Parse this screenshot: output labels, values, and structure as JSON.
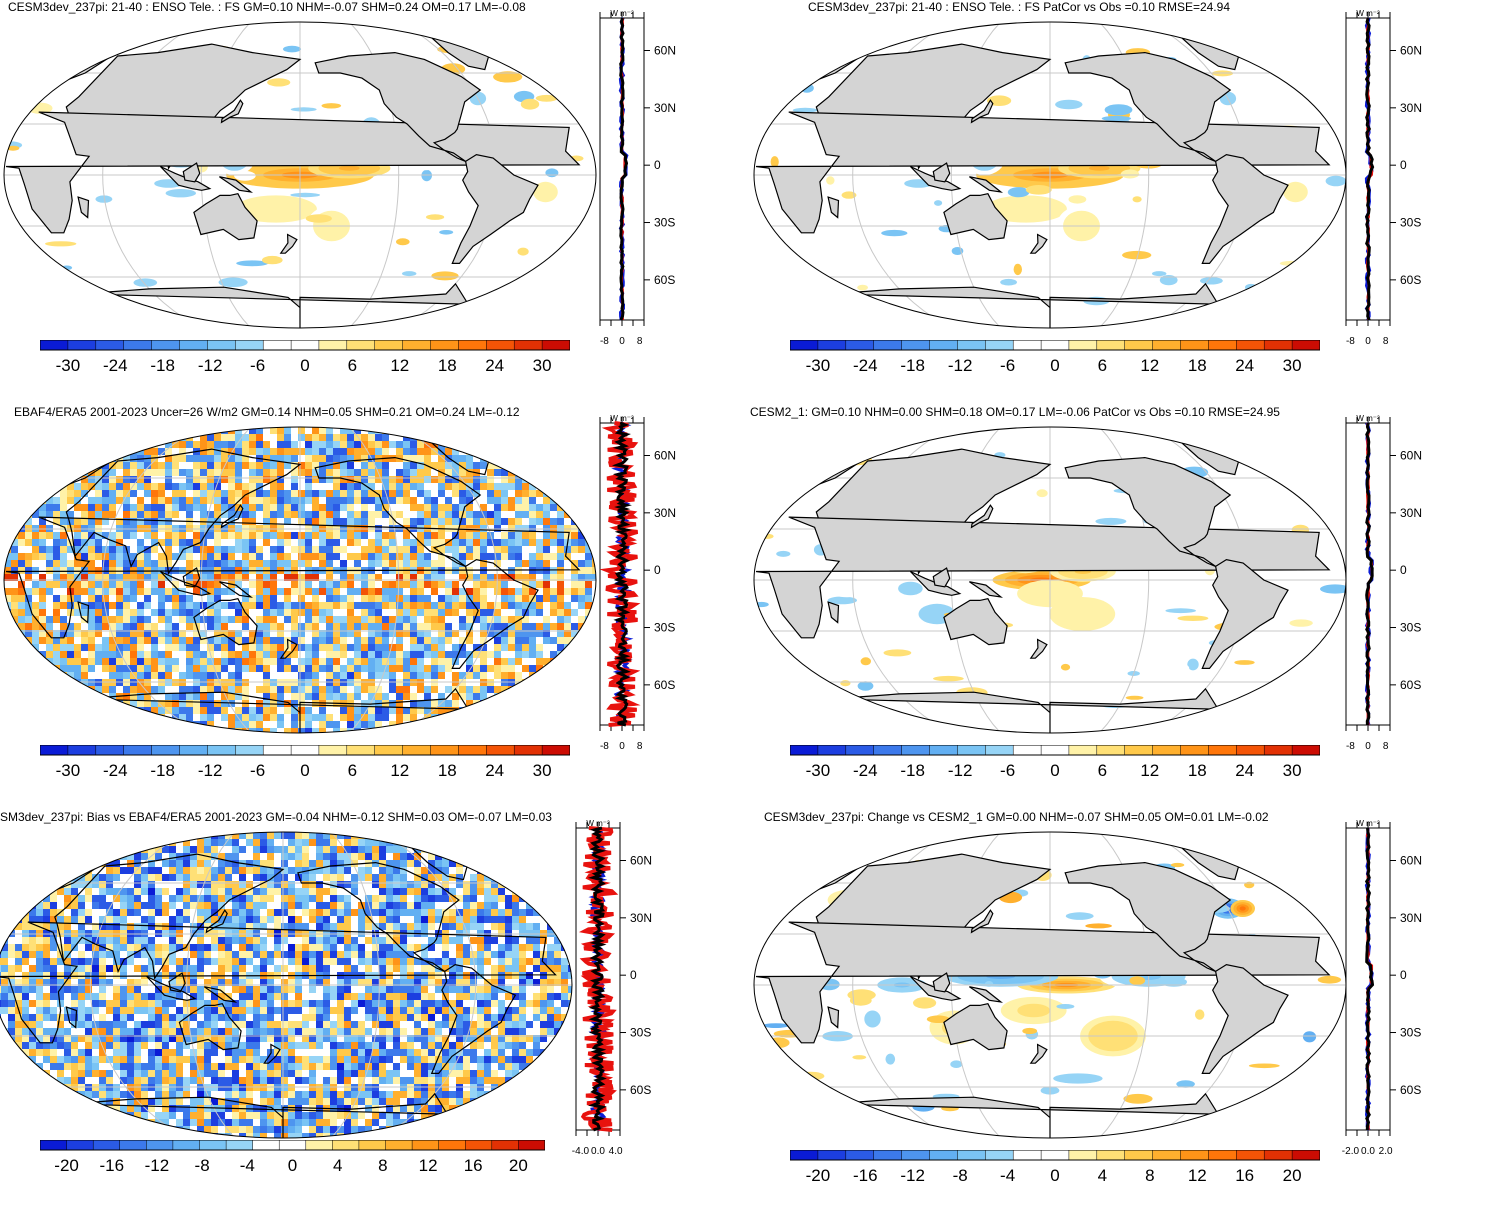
{
  "panels": [
    {
      "title": "CESM3dev_237pi: 21-40 : ENSO Tele. : FS GM=0.10 NHM=-0.07 SHM=0.24 OM=0.17 LM=-0.08",
      "cbar_labels": [
        "-30",
        "-24",
        "-18",
        "-12",
        "-6",
        "0",
        "6",
        "12",
        "18",
        "24",
        "30"
      ],
      "profile_xticks": [
        "-8",
        "0",
        "8"
      ],
      "profile_unit": "W m⁻²",
      "lat_labels": [
        "60N",
        "30N",
        "0",
        "30S",
        "60S"
      ]
    },
    {
      "title": "CESM3dev_237pi: 21-40 : ENSO Tele. : FS PatCor vs Obs =0.10 RMSE=24.94",
      "cbar_labels": [
        "-30",
        "-24",
        "-18",
        "-12",
        "-6",
        "0",
        "6",
        "12",
        "18",
        "24",
        "30"
      ],
      "profile_xticks": [
        "-8",
        "0",
        "8"
      ],
      "profile_unit": "W m⁻²",
      "lat_labels": [
        "60N",
        "30N",
        "0",
        "30S",
        "60S"
      ]
    },
    {
      "title": "EBAF4/ERA5 2001-2023 Uncer=26 W/m2 GM=0.14 NHM=0.05 SHM=0.21 OM=0.24 LM=-0.12",
      "cbar_labels": [
        "-30",
        "-24",
        "-18",
        "-12",
        "-6",
        "0",
        "6",
        "12",
        "18",
        "24",
        "30"
      ],
      "profile_xticks": [
        "-8",
        "0",
        "8"
      ],
      "profile_unit": "W m⁻²",
      "lat_labels": [
        "60N",
        "30N",
        "0",
        "30S",
        "60S"
      ]
    },
    {
      "title": "CESM2_1: GM=0.10 NHM=0.00 SHM=0.18 OM=0.17 LM=-0.06 PatCor vs Obs =0.10 RMSE=24.95",
      "cbar_labels": [
        "-30",
        "-24",
        "-18",
        "-12",
        "-6",
        "0",
        "6",
        "12",
        "18",
        "24",
        "30"
      ],
      "profile_xticks": [
        "-8",
        "0",
        "8"
      ],
      "profile_unit": "W m⁻²",
      "lat_labels": [
        "60N",
        "30N",
        "0",
        "30S",
        "60S"
      ]
    },
    {
      "title": "SM3dev_237pi: Bias vs EBAF4/ERA5 2001-2023 GM=-0.04 NHM=-0.12 SHM=0.03 OM=-0.07 LM=0.03",
      "cbar_labels": [
        "-20",
        "-16",
        "-12",
        "-8",
        "-4",
        "0",
        "4",
        "8",
        "12",
        "16",
        "20"
      ],
      "profile_xticks": [
        "-4.0",
        "0.0",
        "4.0"
      ],
      "profile_unit": "W m⁻²",
      "lat_labels": [
        "60N",
        "30N",
        "0",
        "30S",
        "60S"
      ]
    },
    {
      "title": "CESM3dev_237pi: Change vs CESM2_1 GM=0.00 NHM=-0.07 SHM=0.05 OM=0.01 LM=-0.02",
      "cbar_labels": [
        "-20",
        "-16",
        "-12",
        "-8",
        "-4",
        "0",
        "4",
        "8",
        "12",
        "16",
        "20"
      ],
      "profile_xticks": [
        "-2.0",
        "0.0",
        "2.0"
      ],
      "profile_unit": "W m⁻²",
      "lat_labels": [
        "60N",
        "30N",
        "0",
        "30S",
        "60S"
      ]
    }
  ],
  "colors": {
    "palette": [
      "#0a1bd6",
      "#1c3ee0",
      "#2b5be6",
      "#3c79eb",
      "#4e95ef",
      "#62aff2",
      "#7ac4f4",
      "#96d4f6",
      "#ffffff",
      "#ffffff",
      "#fff2a8",
      "#ffe076",
      "#ffc94a",
      "#ffb02e",
      "#ff9418",
      "#ff760a",
      "#f45406",
      "#e23104",
      "#cc0c03"
    ],
    "land": "#d4d4d4",
    "grid": "#c8c8c8",
    "line_obs": "#0a1bd6",
    "line_model": "#e8120e",
    "line_diff": "#000000"
  },
  "chart_data": [
    {
      "type": "heatmap",
      "title": "CESM3dev_237pi: 21-40 : ENSO Tele. : FS GM=0.10 NHM=-0.07 SHM=0.24 OM=0.17 LM=-0.08",
      "colorbar_range": [
        -30,
        30
      ],
      "zonal_profile": {
        "xlim": [
          -8,
          8
        ],
        "lat_ticks": [
          "60N",
          "30N",
          "0",
          "30S",
          "60S"
        ]
      }
    },
    {
      "type": "heatmap",
      "title": "CESM3dev_237pi: 21-40 : ENSO Tele. : FS PatCor vs Obs =0.10 RMSE=24.94",
      "colorbar_range": [
        -30,
        30
      ],
      "zonal_profile": {
        "xlim": [
          -8,
          8
        ],
        "lat_ticks": [
          "60N",
          "30N",
          "0",
          "30S",
          "60S"
        ]
      }
    },
    {
      "type": "heatmap",
      "title": "EBAF4/ERA5 2001-2023 Uncer=26 W/m2 GM=0.14 NHM=0.05 SHM=0.21 OM=0.24 LM=-0.12",
      "colorbar_range": [
        -30,
        30
      ],
      "zonal_profile": {
        "xlim": [
          -8,
          8
        ],
        "lat_ticks": [
          "60N",
          "30N",
          "0",
          "30S",
          "60S"
        ]
      }
    },
    {
      "type": "heatmap",
      "title": "CESM2_1: GM=0.10 NHM=0.00 SHM=0.18 OM=0.17 LM=-0.06 PatCor vs Obs =0.10 RMSE=24.95",
      "colorbar_range": [
        -30,
        30
      ],
      "zonal_profile": {
        "xlim": [
          -8,
          8
        ],
        "lat_ticks": [
          "60N",
          "30N",
          "0",
          "30S",
          "60S"
        ]
      }
    },
    {
      "type": "heatmap",
      "title": "SM3dev_237pi: Bias vs EBAF4/ERA5 2001-2023 GM=-0.04 NHM=-0.12 SHM=0.03 OM=-0.07 LM=0.03",
      "colorbar_range": [
        -20,
        20
      ],
      "zonal_profile": {
        "xlim": [
          -4,
          4
        ],
        "lat_ticks": [
          "60N",
          "30N",
          "0",
          "30S",
          "60S"
        ]
      }
    },
    {
      "type": "heatmap",
      "title": "CESM3dev_237pi: Change vs CESM2_1 GM=0.00 NHM=-0.07 SHM=0.05 OM=0.01 LM=-0.02",
      "colorbar_range": [
        -20,
        20
      ],
      "zonal_profile": {
        "xlim": [
          -2,
          2
        ],
        "lat_ticks": [
          "60N",
          "30N",
          "0",
          "30S",
          "60S"
        ]
      }
    }
  ]
}
